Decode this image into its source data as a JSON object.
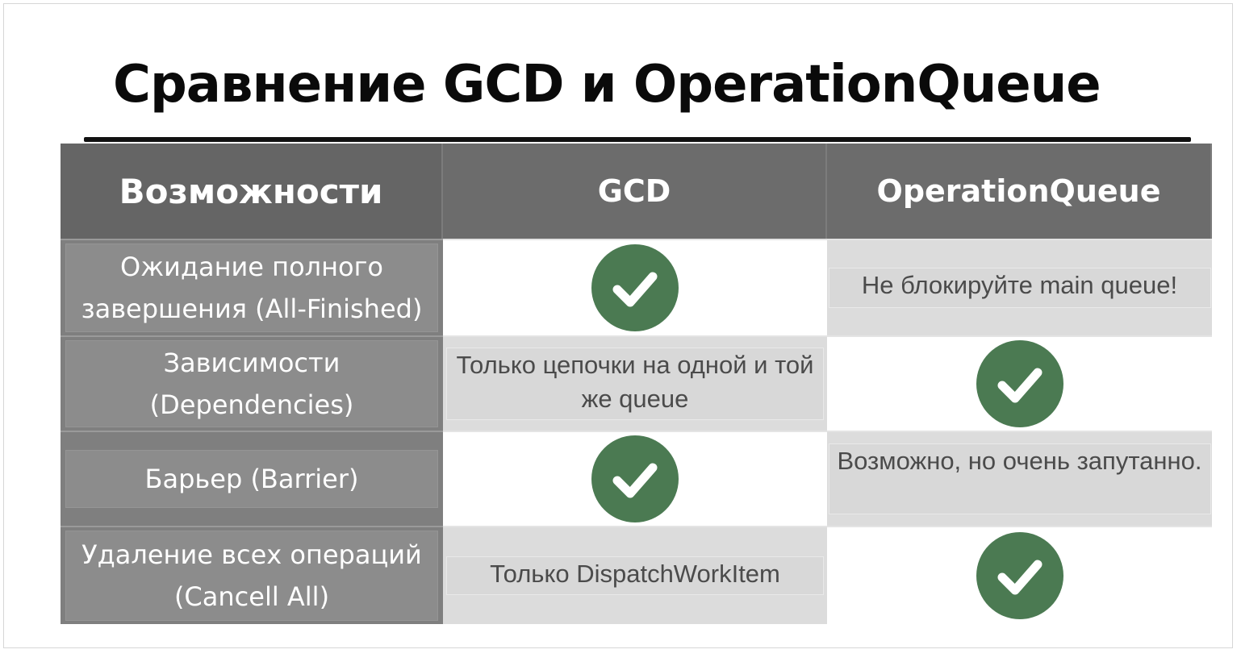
{
  "slide": {
    "title": "Сравнение GCD и OperationQueue"
  },
  "table": {
    "headers": [
      "Возможности",
      "GCD",
      "OperationQueue"
    ],
    "rows": [
      {
        "feature": "Ожидание полного завершения (All-Finished)",
        "gcd": {
          "type": "check",
          "icon": "check-icon"
        },
        "operation_queue": {
          "type": "text",
          "text": "Не блокируйте  main queue!"
        }
      },
      {
        "feature": "Зависимости (Dependencies)",
        "gcd": {
          "type": "text",
          "text": "Только цепочки на одной и той же queue"
        },
        "operation_queue": {
          "type": "check",
          "icon": "check-icon"
        }
      },
      {
        "feature": "Барьер (Barrier)",
        "gcd": {
          "type": "check",
          "icon": "check-icon"
        },
        "operation_queue": {
          "type": "text",
          "text": "Возможно, но очень запутанно."
        }
      },
      {
        "feature": "Удаление всех операций (Cancell All)",
        "gcd": {
          "type": "text",
          "text": "Только DispatchWorkItem"
        },
        "operation_queue": {
          "type": "check",
          "icon": "check-icon"
        }
      }
    ]
  },
  "colors": {
    "header_bg": "#6c6c6c",
    "feature_bg": "#8c8c8c",
    "check_green": "#4b7a52",
    "note_bg": "#d8d8d8"
  }
}
